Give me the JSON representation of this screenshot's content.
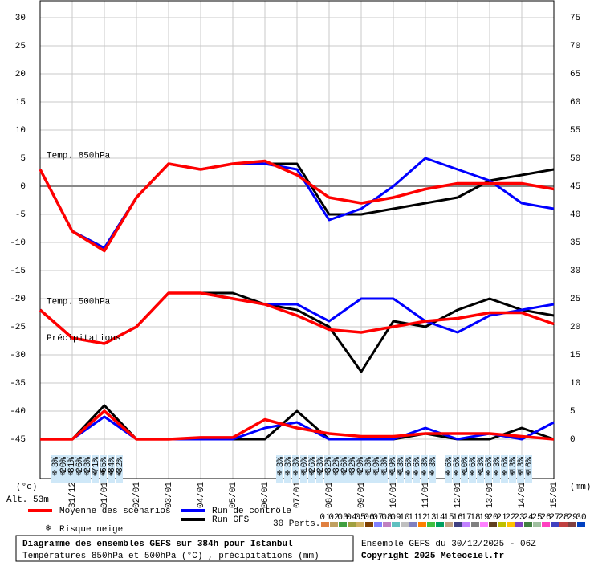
{
  "chart_data": {
    "type": "line",
    "y_unit": "(°c)",
    "altitude": "Alt. 53m",
    "y2_unit": "(mm)",
    "xlim": [
      0,
      16
    ],
    "ylim": [
      -52,
      33
    ],
    "y2lim": [
      -7,
      78
    ],
    "xticks": [
      {
        "value": 1,
        "label": "31/12"
      },
      {
        "value": 2,
        "label": "01/01"
      },
      {
        "value": 3,
        "label": "02/01"
      },
      {
        "value": 4,
        "label": "03/01"
      },
      {
        "value": 5,
        "label": "04/01"
      },
      {
        "value": 6,
        "label": "05/01"
      },
      {
        "value": 7,
        "label": "06/01"
      },
      {
        "value": 8,
        "label": "07/01"
      },
      {
        "value": 9,
        "label": "08/01"
      },
      {
        "value": 10,
        "label": "09/01"
      },
      {
        "value": 11,
        "label": "10/01"
      },
      {
        "value": 12,
        "label": "11/01"
      },
      {
        "value": 13,
        "label": "12/01"
      },
      {
        "value": 14,
        "label": "13/01"
      },
      {
        "value": 15,
        "label": "14/01"
      },
      {
        "value": 16,
        "label": "15/01"
      }
    ],
    "yticks": [
      -45,
      -40,
      -35,
      -30,
      -25,
      -20,
      -15,
      -10,
      -5,
      0,
      5,
      10,
      15,
      20,
      25,
      30
    ],
    "y2ticks": [
      0,
      5,
      10,
      15,
      20,
      25,
      30,
      35,
      40,
      45,
      50,
      55,
      60,
      65,
      70,
      75
    ],
    "grid": true,
    "zero_line": 0,
    "legend": {
      "mean": {
        "name": "Moyenne des scénarios",
        "color": "#ff0000"
      },
      "control": {
        "name": "Run de contrôle",
        "color": "#0000ff"
      },
      "gfs": {
        "name": "Run GFS",
        "color": "#000000"
      },
      "snow": "Risque neige",
      "perts_title": "30 Perts.",
      "perts": [
        {
          "name": "01",
          "color": "#e08040"
        },
        {
          "name": "02",
          "color": "#c0a060"
        },
        {
          "name": "03",
          "color": "#40a040"
        },
        {
          "name": "04",
          "color": "#a0a040"
        },
        {
          "name": "05",
          "color": "#d0b060"
        },
        {
          "name": "06",
          "color": "#804000"
        },
        {
          "name": "07",
          "color": "#8080ff"
        },
        {
          "name": "08",
          "color": "#c080c0"
        },
        {
          "name": "09",
          "color": "#60c0c0"
        },
        {
          "name": "10",
          "color": "#c0c0c0"
        },
        {
          "name": "11",
          "color": "#8080c0"
        },
        {
          "name": "12",
          "color": "#ff8000"
        },
        {
          "name": "13",
          "color": "#40c040"
        },
        {
          "name": "14",
          "color": "#00a060"
        },
        {
          "name": "15",
          "color": "#c0a080"
        },
        {
          "name": "16",
          "color": "#404080"
        },
        {
          "name": "17",
          "color": "#c080ff"
        },
        {
          "name": "18",
          "color": "#808080"
        },
        {
          "name": "19",
          "color": "#ff80ff"
        },
        {
          "name": "20",
          "color": "#604020"
        },
        {
          "name": "21",
          "color": "#c0c000"
        },
        {
          "name": "22",
          "color": "#ffc000"
        },
        {
          "name": "23",
          "color": "#8040c0"
        },
        {
          "name": "24",
          "color": "#408040"
        },
        {
          "name": "25",
          "color": "#a0c0a0"
        },
        {
          "name": "26",
          "color": "#ff40c0"
        },
        {
          "name": "27",
          "color": "#4040c0"
        },
        {
          "name": "28",
          "color": "#c04040"
        },
        {
          "name": "29",
          "color": "#804040"
        },
        {
          "name": "30",
          "color": "#0040c0"
        }
      ]
    },
    "x": [
      0,
      1,
      2,
      3,
      4,
      5,
      6,
      7,
      8,
      9,
      10,
      11,
      12,
      13,
      14,
      15,
      16
    ],
    "groups": [
      {
        "label": "Temp. 850hPa",
        "axis": "y",
        "gfs": [
          3,
          -8,
          -11,
          -2,
          4,
          3,
          4,
          4,
          4,
          -5,
          -5,
          -4,
          -3,
          -2,
          1,
          2,
          3
        ],
        "control": [
          3,
          -8,
          -11,
          -2,
          4,
          3,
          4,
          4,
          3,
          -6,
          -4,
          0,
          5,
          3,
          1,
          -3,
          -4
        ],
        "mean": [
          3,
          -8,
          -11.5,
          -2,
          4,
          3,
          4,
          4.5,
          2,
          -2,
          -3,
          -2,
          -0.5,
          0.5,
          0.5,
          0.5,
          -0.5
        ]
      },
      {
        "label": "Temp. 500hPa",
        "axis": "y",
        "gfs": [
          -22,
          -27,
          -28,
          -25,
          -19,
          -19,
          -19,
          -21,
          -22,
          -25,
          -33,
          -24,
          -25,
          -22,
          -20,
          -22,
          -23
        ],
        "control": [
          -22,
          -27,
          -28,
          -25,
          -19,
          -19,
          -20,
          -21,
          -21,
          -24,
          -20,
          -20,
          -24,
          -26,
          -23,
          -22,
          -21
        ],
        "mean": [
          -22,
          -27,
          -28,
          -25,
          -19,
          -19,
          -20,
          -21,
          -23,
          -25.5,
          -26,
          -25,
          -24,
          -23.5,
          -22.5,
          -22.5,
          -24.5
        ]
      },
      {
        "label": "Précipitations",
        "axis": "y2",
        "gfs": [
          0,
          0,
          6,
          0,
          0,
          0,
          0,
          0,
          5,
          0,
          0,
          0,
          1,
          0,
          0,
          2,
          0
        ],
        "control": [
          0,
          0,
          4,
          0,
          0,
          0,
          0,
          2,
          3,
          0,
          0,
          0,
          2,
          0,
          1,
          0,
          3
        ],
        "mean": [
          0,
          0,
          5,
          0,
          0,
          0.3,
          0.3,
          3.5,
          2,
          1,
          0.5,
          0.5,
          1,
          1,
          1,
          0.5,
          0
        ]
      }
    ],
    "snow_risk": {
      "x": [
        0.45,
        0.7,
        0.95,
        1.2,
        1.45,
        1.7,
        1.95,
        2.2,
        2.45,
        7.45,
        7.7,
        7.95,
        8.2,
        8.45,
        8.7,
        8.95,
        9.2,
        9.45,
        9.7,
        9.95,
        10.2,
        10.45,
        10.7,
        10.95,
        11.2,
        11.45,
        11.7,
        11.95,
        12.2,
        12.7,
        12.95,
        13.2,
        13.45,
        13.7,
        13.95,
        14.2,
        14.45,
        14.7,
        14.95,
        15.2
      ],
      "labels": [
        "3%",
        "20%",
        "81%",
        "26%",
        "23%",
        "71%",
        "65%",
        "84%",
        "32%",
        "3%",
        "3%",
        "3%",
        "10%",
        "26%",
        "23%",
        "32%",
        "32%",
        "26%",
        "32%",
        "29%",
        "13%",
        "19%",
        "13%",
        "19%",
        "13%",
        "6%",
        "6%",
        "3%",
        "3%",
        "6%",
        "6%",
        "10%",
        "6%",
        "13%",
        "6%",
        "3%",
        "6%",
        "13%",
        "13%",
        "16%"
      ]
    }
  },
  "footer": {
    "title": "Diagramme des ensembles GEFS sur 384h pour Istanbul",
    "subtitle": "Températures 850hPa et 500hPa (°C) , précipitations (mm)",
    "run": "Ensemble GEFS du 30/12/2025 - 06Z",
    "copyright": "Copyright 2025 Meteociel.fr"
  }
}
